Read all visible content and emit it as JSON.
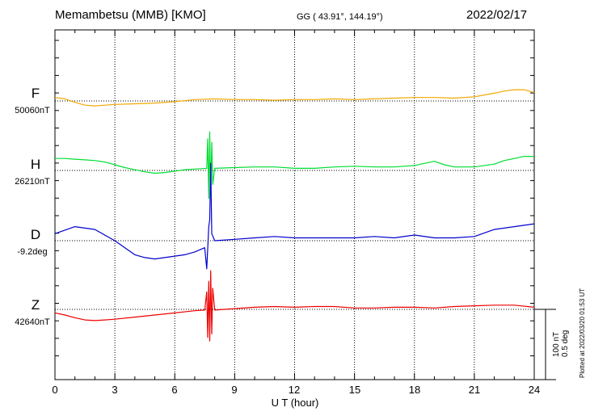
{
  "header": {
    "station": "Memambetsu (MMB)  [KMO]",
    "coords": "GG ( 43.91°, 144.19°)",
    "date": "2022/02/17"
  },
  "scale": {
    "nt": "100 nT",
    "deg": "0.5 deg",
    "plotted": "Plotted at 2022/03/20 01:53 UT"
  },
  "colors": {
    "F": "#f0a800",
    "H": "#00dd33",
    "D": "#0000cc",
    "Z": "#ee0000",
    "grid": "#000000"
  },
  "chart_data": {
    "type": "line",
    "title": "Memambetsu (MMB)  [KMO]",
    "xlabel": "U T (hour)",
    "xlim": [
      0,
      24
    ],
    "xticks": [
      "0",
      "3",
      "6",
      "9",
      "12",
      "15",
      "18",
      "21",
      "24"
    ],
    "grid": true,
    "units_per_scale_bar": {
      "nT": 100,
      "deg": 0.5
    },
    "series": [
      {
        "name": "F",
        "baseline_label": "50060nT",
        "unit": "nT",
        "x": [
          0,
          0.5,
          1,
          1.5,
          2,
          2.5,
          3,
          4,
          5,
          6,
          7,
          8,
          9,
          10,
          11,
          12,
          13,
          14,
          15,
          16,
          17,
          18,
          19,
          20,
          21,
          22,
          22.5,
          23,
          23.5,
          24
        ],
        "values": [
          5,
          3,
          -2,
          -6,
          -7,
          -6,
          -5,
          -4,
          -3,
          -1,
          2,
          3,
          2,
          2,
          1,
          2,
          2,
          3,
          2,
          3,
          4,
          5,
          5,
          4,
          6,
          11,
          14,
          16,
          16,
          12
        ]
      },
      {
        "name": "H",
        "baseline_label": "26210nT",
        "unit": "nT",
        "x": [
          0,
          0.5,
          1,
          1.5,
          2,
          2.5,
          3,
          3.5,
          4,
          4.5,
          5,
          5.5,
          6,
          6.5,
          7,
          7.6,
          7.65,
          7.7,
          7.75,
          7.8,
          7.85,
          7.9,
          8,
          9,
          10,
          11,
          12,
          13,
          14,
          15,
          16,
          17,
          18,
          18.5,
          19,
          19.5,
          20,
          21,
          22,
          22.5,
          23,
          23.5,
          24
        ],
        "values": [
          17,
          17,
          16,
          15,
          14,
          12,
          8,
          4,
          1,
          -2,
          -4,
          -3,
          -1,
          1,
          2,
          3,
          45,
          -40,
          55,
          -35,
          40,
          -20,
          3,
          4,
          5,
          5,
          3,
          3,
          5,
          6,
          5,
          5,
          7,
          10,
          13,
          8,
          5,
          5,
          9,
          14,
          17,
          20,
          20
        ]
      },
      {
        "name": "D",
        "baseline_label": "-9.2deg",
        "unit": "deg",
        "x": [
          0,
          1,
          2,
          3,
          3.5,
          4,
          4.5,
          5,
          5.5,
          6,
          6.5,
          7,
          7.5,
          7.6,
          7.7,
          7.75,
          7.8,
          7.85,
          8,
          9,
          10,
          11,
          12,
          13,
          14,
          15,
          16,
          17,
          18,
          19,
          20,
          21,
          22,
          23,
          24
        ],
        "values": [
          0.05,
          0.1,
          0.08,
          0.0,
          -0.05,
          -0.1,
          -0.12,
          -0.13,
          -0.12,
          -0.11,
          -0.1,
          -0.08,
          -0.05,
          -0.2,
          0.1,
          0.15,
          0.55,
          0.05,
          0.0,
          0.01,
          0.02,
          0.03,
          0.02,
          0.02,
          0.02,
          0.02,
          0.03,
          0.02,
          0.04,
          0.02,
          0.02,
          0.03,
          0.08,
          0.1,
          0.12
        ]
      },
      {
        "name": "Z",
        "baseline_label": "42640nT",
        "unit": "nT",
        "x": [
          0,
          0.5,
          1,
          1.5,
          2,
          2.5,
          3,
          4,
          5,
          6,
          7,
          7.5,
          7.6,
          7.65,
          7.7,
          7.75,
          7.8,
          7.85,
          7.9,
          8,
          9,
          10,
          11,
          12,
          13,
          14,
          15,
          16,
          17,
          18,
          19,
          20,
          21,
          22,
          23,
          24
        ],
        "values": [
          -5,
          -8,
          -12,
          -15,
          -16,
          -15,
          -14,
          -11,
          -8,
          -5,
          -2,
          -1,
          25,
          -40,
          40,
          -45,
          55,
          -35,
          30,
          -1,
          1,
          3,
          4,
          3,
          4,
          4,
          2,
          2,
          3,
          3,
          2,
          4,
          5,
          6,
          6,
          3
        ]
      }
    ]
  }
}
